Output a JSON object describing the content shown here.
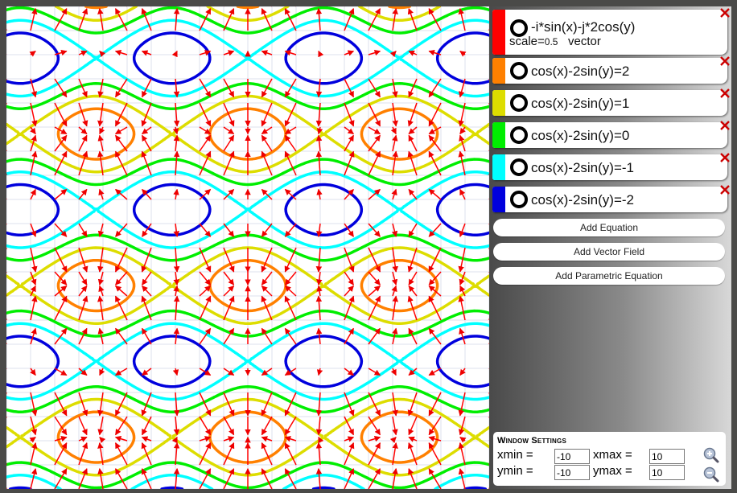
{
  "colors": {
    "vector": "#ff0000",
    "level_2": "#ff8000",
    "level_1": "#dddd00",
    "level_0": "#00ee00",
    "level_m1": "#00ffff",
    "level_m2": "#0000dd"
  },
  "equations": [
    {
      "kind": "vector",
      "text": "-i*sin(x)-j*2cos(y)",
      "scale_label": "scale=",
      "scale_value": "0.5",
      "type_label": "vector",
      "color": "#ff0000"
    },
    {
      "kind": "equation",
      "text": "cos(x)-2sin(y)=2",
      "color": "#ff8000"
    },
    {
      "kind": "equation",
      "text": "cos(x)-2sin(y)=1",
      "color": "#dddd00"
    },
    {
      "kind": "equation",
      "text": "cos(x)-2sin(y)=0",
      "color": "#00ee00"
    },
    {
      "kind": "equation",
      "text": "cos(x)-2sin(y)=-1",
      "color": "#00ffff"
    },
    {
      "kind": "equation",
      "text": "cos(x)-2sin(y)=-2",
      "color": "#0000dd"
    }
  ],
  "buttons": {
    "add_equation": "Add Equation",
    "add_vector_field": "Add Vector Field",
    "add_parametric": "Add Parametric Equation"
  },
  "window_settings": {
    "title": "Window Settings",
    "xmin_label": "xmin =",
    "xmax_label": "xmax =",
    "ymin_label": "ymin =",
    "ymax_label": "ymax =",
    "xmin": "-10",
    "xmax": "10",
    "ymin": "-10",
    "ymax": "10"
  },
  "icons": {
    "close": "close-icon",
    "zoom_in": "zoom-in-icon",
    "zoom_out": "zoom-out-icon",
    "visibility": "visibility-toggle-icon"
  }
}
